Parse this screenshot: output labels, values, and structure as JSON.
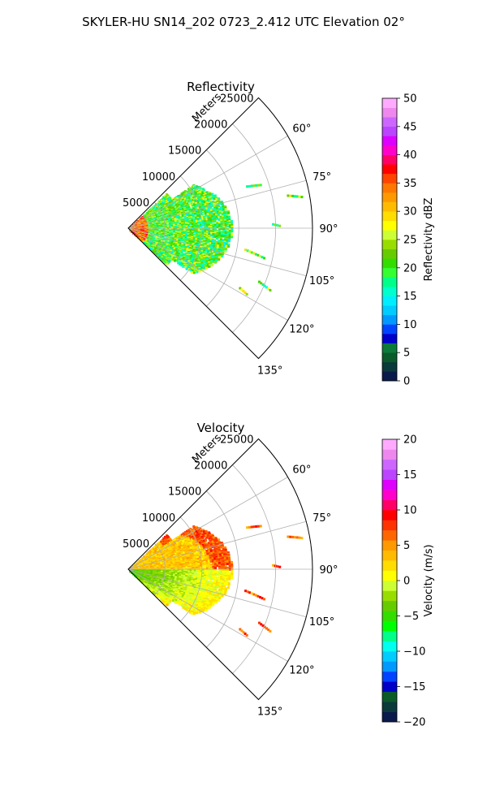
{
  "figure": {
    "suptitle": "SKYLER-HU  SN14_202  0723_2.412 UTC Elevation 02°"
  },
  "chart_data": [
    {
      "type": "polar-sector-heatmap",
      "title": "Reflectivity",
      "radial_label": "Meters",
      "r_ticks": [
        5000,
        10000,
        15000,
        20000,
        25000
      ],
      "r_tick_labels": [
        "5000",
        "10000",
        "15000",
        "20000",
        "25000"
      ],
      "rlim": [
        0,
        25000
      ],
      "theta_ticks_deg": [
        60,
        75,
        90,
        105,
        120,
        135
      ],
      "theta_tick_labels": [
        "60°",
        "75°",
        "90°",
        "105°",
        "120°",
        "135°"
      ],
      "theta_range_deg": [
        45,
        135
      ],
      "grid": true,
      "colorbar": {
        "label": "Reflectivity dBZ",
        "vmin": 0,
        "vmax": 50,
        "ticks": [
          0,
          5,
          10,
          15,
          20,
          25,
          30,
          35,
          40,
          45,
          50
        ],
        "tick_labels": [
          "0",
          "5",
          "10",
          "15",
          "20",
          "25",
          "30",
          "35",
          "40",
          "45",
          "50"
        ],
        "colors": [
          "#0a1a4a",
          "#0a3a3a",
          "#0b5a2a",
          "#0b7a3a",
          "#0000c8",
          "#0044ff",
          "#0099ff",
          "#00ccff",
          "#00eeff",
          "#00ffcc",
          "#00ff88",
          "#33ff33",
          "#33dd00",
          "#66cc00",
          "#99dd00",
          "#ccff33",
          "#ffff00",
          "#ffdd00",
          "#ffbb00",
          "#ff9900",
          "#ff7700",
          "#ff4400",
          "#ff0000",
          "#ff0066",
          "#ff00cc",
          "#dd00ff",
          "#bb44ff",
          "#cc66ff",
          "#ee88ee",
          "#ffaaff"
        ]
      }
    },
    {
      "type": "polar-sector-heatmap",
      "title": "Velocity",
      "radial_label": "Meters",
      "r_ticks": [
        5000,
        10000,
        15000,
        20000,
        25000
      ],
      "r_tick_labels": [
        "5000",
        "10000",
        "15000",
        "20000",
        "25000"
      ],
      "rlim": [
        0,
        25000
      ],
      "theta_ticks_deg": [
        60,
        75,
        90,
        105,
        120,
        135
      ],
      "theta_tick_labels": [
        "60°",
        "75°",
        "90°",
        "105°",
        "120°",
        "135°"
      ],
      "theta_range_deg": [
        45,
        135
      ],
      "grid": true,
      "colorbar": {
        "label": "Velocity (m/s)",
        "vmin": -20,
        "vmax": 20,
        "ticks": [
          -20,
          -15,
          -10,
          -5,
          0,
          5,
          10,
          15,
          20
        ],
        "tick_labels": [
          "−20",
          "−15",
          "−10",
          "−5",
          "0",
          "5",
          "10",
          "15",
          "20"
        ],
        "colors": [
          "#0a1a4a",
          "#0a3a3a",
          "#0b5a2a",
          "#0000c8",
          "#0044ff",
          "#0099ff",
          "#00ccff",
          "#00ffee",
          "#00ff88",
          "#00ff00",
          "#33dd00",
          "#66cc00",
          "#99dd00",
          "#ccff33",
          "#ffff00",
          "#ffdd00",
          "#ffbb00",
          "#ff9900",
          "#ff6600",
          "#ff3300",
          "#ff0000",
          "#ff0066",
          "#ff00cc",
          "#dd00ff",
          "#bb44ff",
          "#cc66ff",
          "#ee88ee",
          "#ffaaff"
        ]
      }
    }
  ]
}
